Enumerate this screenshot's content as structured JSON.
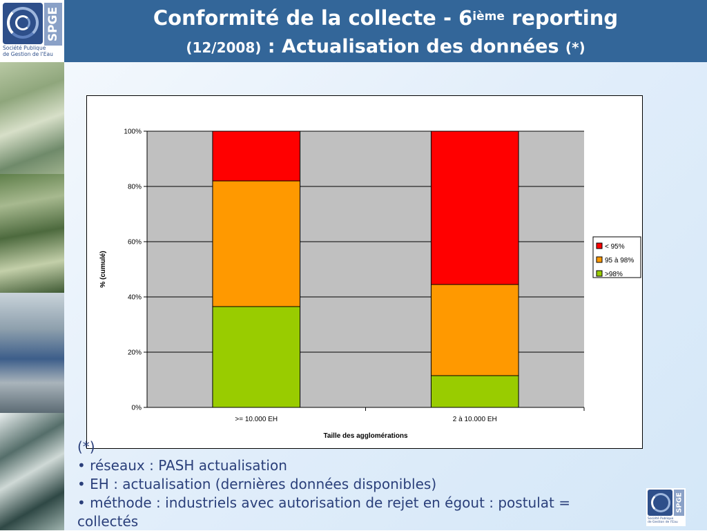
{
  "header": {
    "title_line1_main": "Conformité de la collecte - 6",
    "title_line1_sup": "ième",
    "title_line1_tail": " reporting",
    "title_line2_date": "(12/2008)",
    "title_line2_main": " : Actualisation des données ",
    "title_line2_note": "(*)",
    "background_color": "#336699"
  },
  "logo": {
    "letters": "SPGE",
    "caption": "Société Publique\nde Gestion de l'Eau"
  },
  "chart_data": {
    "type": "bar",
    "stacked": true,
    "normalized": true,
    "categories": [
      ">= 10.000 EH",
      "2 à 10.000 EH"
    ],
    "series": [
      {
        "name": ">98%",
        "color": "#99cc00",
        "values": [
          36.5,
          11.5
        ]
      },
      {
        "name": "95 à 98%",
        "color": "#ff9900",
        "values": [
          45.5,
          33
        ]
      },
      {
        "name": "< 95%",
        "color": "#ff0000",
        "values": [
          18,
          55.5
        ]
      }
    ],
    "legend_order": [
      "< 95%",
      "95 à 98%",
      ">98%"
    ],
    "ylim": [
      0,
      100
    ],
    "yticks": [
      "0%",
      "20%",
      "40%",
      "60%",
      "80%",
      "100%"
    ],
    "xlabel": "Taille des agglomérations",
    "ylabel": "% (cumulé)",
    "grid": true,
    "plot_background": "#c0c0c0",
    "legend_position": "right"
  },
  "notes": {
    "marker": "(*)",
    "items": [
      "• réseaux : PASH actualisation",
      "• EH : actualisation (dernières données disponibles)",
      "• méthode : industriels avec autorisation de rejet en égout : postulat ="
    ],
    "continuation": "collectés"
  }
}
